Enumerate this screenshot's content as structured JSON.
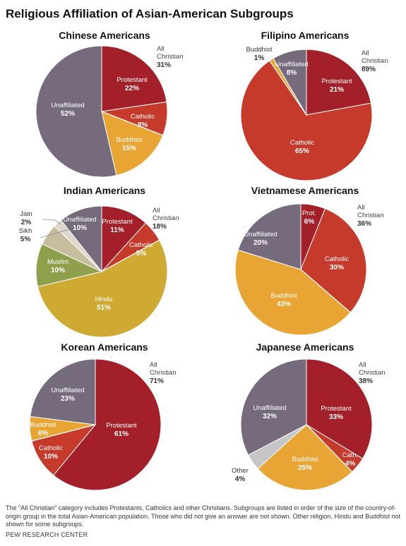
{
  "title": "Religious Affiliation of Asian-American Subgroups",
  "footnote": "The \"All Christian\" category includes Protestants, Catholics and other Christians. Subgroups are listed in order of the size of the country-of-origin group in the total Asian-American population. Those who did not give an answer are not shown. Other religion, Hindu and Buddhist not shown for some subgroups.",
  "source": "PEW RESEARCH CENTER",
  "colors": {
    "protestant": "#a3202a",
    "catholic": "#c53a2a",
    "buddhist": "#e8a534",
    "unaffiliated": "#756b7d",
    "hindu": "#cfaa33",
    "muslim": "#8ea04b",
    "sikh": "#c8bc9e",
    "jain": "#dcd7c8",
    "other": "#c6c6c6"
  },
  "chart_data": [
    {
      "type": "pie",
      "title": "Chinese Americans",
      "slices": [
        {
          "label": "Protestant",
          "value": 22,
          "color": "protestant"
        },
        {
          "label": "Catholic",
          "value": 8,
          "color": "catholic"
        },
        {
          "label": "Buddhist",
          "value": 15,
          "color": "buddhist"
        },
        {
          "label": "Unaffiliated",
          "value": 52,
          "color": "unaffiliated"
        }
      ],
      "all_christian": {
        "label": "All Christian",
        "value": 31
      }
    },
    {
      "type": "pie",
      "title": "Filipino Americans",
      "slices": [
        {
          "label": "Protestant",
          "value": 21,
          "color": "protestant"
        },
        {
          "label": "Catholic",
          "value": 65,
          "color": "catholic"
        },
        {
          "label": "Buddhist",
          "value": 1,
          "color": "buddhist"
        },
        {
          "label": "Unaffiliated",
          "value": 8,
          "color": "unaffiliated"
        }
      ],
      "all_christian": {
        "label": "All Christian",
        "value": 89
      }
    },
    {
      "type": "pie",
      "title": "Indian Americans",
      "slices": [
        {
          "label": "Protestant",
          "value": 11,
          "color": "protestant"
        },
        {
          "label": "Catholic",
          "value": 5,
          "color": "catholic"
        },
        {
          "label": "Hindu",
          "value": 51,
          "color": "hindu"
        },
        {
          "label": "Muslim",
          "value": 10,
          "color": "muslim"
        },
        {
          "label": "Sikh",
          "value": 5,
          "color": "sikh"
        },
        {
          "label": "Jain",
          "value": 2,
          "color": "jain"
        },
        {
          "label": "Unaffiliated",
          "value": 10,
          "color": "unaffiliated"
        }
      ],
      "all_christian": {
        "label": "All Christian",
        "value": 18
      }
    },
    {
      "type": "pie",
      "title": "Vietnamese Americans",
      "slices": [
        {
          "label": "Prot.",
          "value": 6,
          "color": "protestant"
        },
        {
          "label": "Catholic",
          "value": 30,
          "color": "catholic"
        },
        {
          "label": "Buddhist",
          "value": 43,
          "color": "buddhist"
        },
        {
          "label": "Unaffiliated",
          "value": 20,
          "color": "unaffiliated"
        }
      ],
      "all_christian": {
        "label": "All Christian",
        "value": 36
      }
    },
    {
      "type": "pie",
      "title": "Korean Americans",
      "slices": [
        {
          "label": "Protestant",
          "value": 61,
          "color": "protestant"
        },
        {
          "label": "Catholic",
          "value": 10,
          "color": "catholic"
        },
        {
          "label": "Buddhist",
          "value": 6,
          "color": "buddhist"
        },
        {
          "label": "Unaffiliated",
          "value": 23,
          "color": "unaffiliated"
        }
      ],
      "all_christian": {
        "label": "All Christian",
        "value": 71
      }
    },
    {
      "type": "pie",
      "title": "Japanese Americans",
      "slices": [
        {
          "label": "Protestant",
          "value": 33,
          "color": "protestant"
        },
        {
          "label": "Cath.",
          "value": 4,
          "color": "catholic"
        },
        {
          "label": "Buddhist",
          "value": 25,
          "color": "buddhist"
        },
        {
          "label": "Other",
          "value": 4,
          "color": "other"
        },
        {
          "label": "Unaffiliated",
          "value": 32,
          "color": "unaffiliated"
        }
      ],
      "all_christian": {
        "label": "All Christian",
        "value": 38
      }
    }
  ]
}
